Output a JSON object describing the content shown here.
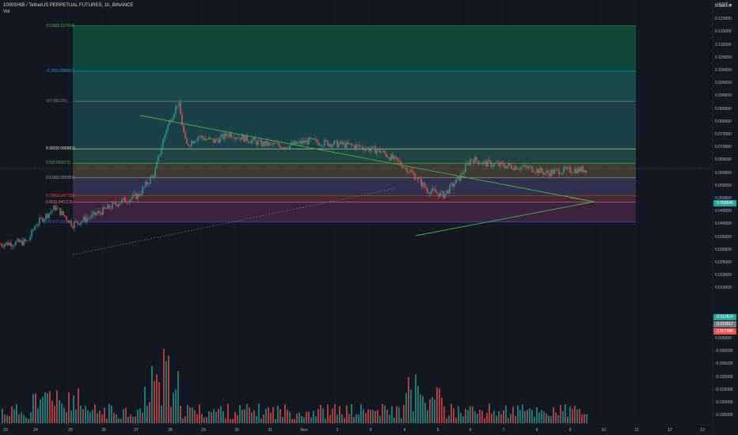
{
  "header": {
    "title": "1000SHIB / TetherUS PERPETUAL FUTURES, 1h, BINANCE",
    "vol": "Vol",
    "currency": "USDT",
    "currency_caret": "▾"
  },
  "fib_levels": [
    {
      "label": "0.618(0.117014)",
      "price": 0.117014,
      "color": "#4caf50"
    },
    {
      "label": "-0.25(0.098567)",
      "price": 0.098567,
      "color": "#2196f3"
    },
    {
      "label": "0(0.086235)",
      "price": 0.086235,
      "color": "#787b86"
    },
    {
      "label": "0.382(0.066887)",
      "price": 0.066887,
      "color": "#c8e6c9"
    },
    {
      "label": "0.5(0.060972)",
      "price": 0.060972,
      "color": "#4caf50"
    },
    {
      "label": "0.618(0.055057)",
      "price": 0.055057,
      "color": "#9e9e9e"
    },
    {
      "label": "0.786(0.047739)",
      "price": 0.047739,
      "color": "#f44336"
    },
    {
      "label": "0.86(0.045113)",
      "price": 0.045113,
      "color": "#f06292"
    },
    {
      "label": "1(0.037000)",
      "price": 0.037,
      "color": "#3f51b5"
    }
  ],
  "price_axis": [
    "0.125000",
    "0.120000",
    "0.115000",
    "0.110000",
    "0.105000",
    "0.100000",
    "0.095000",
    "0.090000",
    "0.085000",
    "0.080000",
    "0.075000",
    "0.070000",
    "0.065000",
    "0.060000",
    "0.055000",
    "0.050000",
    "0.045000",
    "0.040000",
    "0.035000",
    "0.030000",
    "0.025000",
    "0.020000",
    "0.015000"
  ],
  "vol_axis": [
    "0.005000",
    "-0.000000",
    "-0.005000",
    "-0.010000",
    "-0.015000",
    "-0.020000",
    "-0.025000"
  ],
  "badges": {
    "current_price": {
      "value": "0.058846",
      "color": "#26a69a",
      "price": 0.058846
    },
    "vol_green": {
      "value": "0.012824",
      "color": "#26a69a"
    },
    "vol_gray": {
      "value": "0.010017",
      "color": "#787b86"
    },
    "vol_red": {
      "value": "0.007986",
      "color": "#ef5350"
    }
  },
  "date_axis": [
    "23",
    "24",
    "25",
    "26",
    "27",
    "28",
    "29",
    "30",
    "31",
    "Nov",
    "2",
    "3",
    "4",
    "5",
    "6",
    "7",
    "8",
    "9",
    "10",
    "11",
    "12",
    "13"
  ],
  "colors": {
    "bull": "#26a69a",
    "bear": "#ef5350",
    "trend": "#4caf50"
  }
}
